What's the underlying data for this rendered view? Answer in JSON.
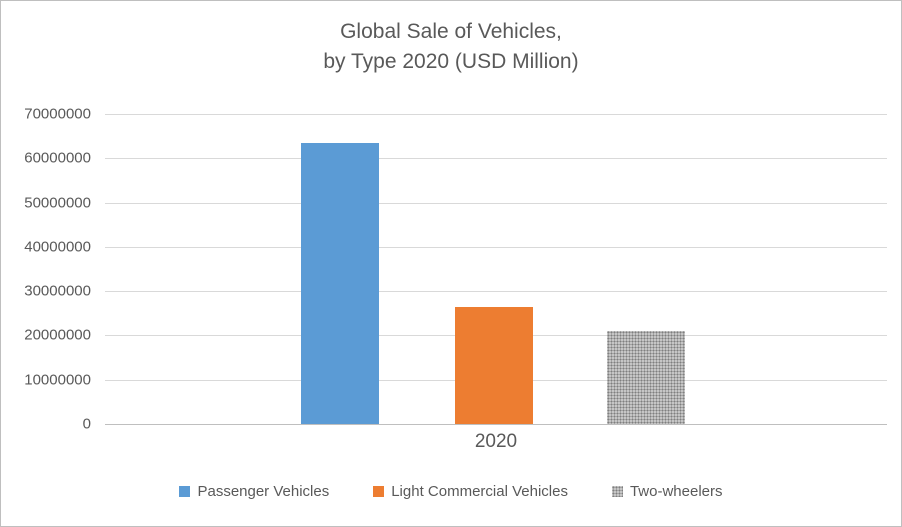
{
  "header": {
    "title_line1": "Global Sale of Vehicles,",
    "title_line2": "by Type 2020 (USD Million)"
  },
  "chart_data": {
    "type": "bar",
    "title": "Global Sale of Vehicles, by Type 2020 (USD Million)",
    "categories": [
      "2020"
    ],
    "series": [
      {
        "name": "Passenger Vehicles",
        "values": [
          63500000
        ],
        "color": "#5B9BD5"
      },
      {
        "name": "Light Commercial Vehicles",
        "values": [
          26500000
        ],
        "color": "#ED7D31"
      },
      {
        "name": "Two-wheelers",
        "values": [
          21000000
        ],
        "color": "#A5A5A5",
        "pattern": "dots"
      }
    ],
    "xlabel": "",
    "ylabel": "",
    "ylim": [
      0,
      70000000
    ],
    "ytick_step": 10000000,
    "ytick_labels": [
      "0",
      "10000000",
      "20000000",
      "30000000",
      "40000000",
      "50000000",
      "60000000",
      "70000000"
    ],
    "grid": true,
    "legend_position": "bottom",
    "colors": {
      "axis": "#BFBFBF",
      "gridline": "#D9D9D9",
      "text": "#595959"
    }
  }
}
